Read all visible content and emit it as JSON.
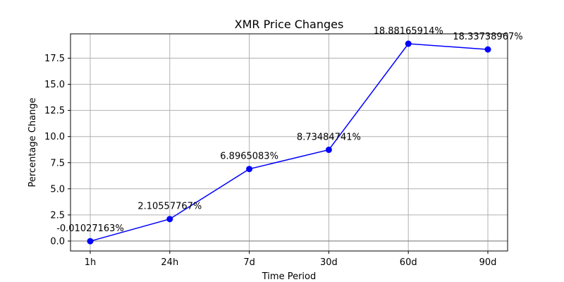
{
  "chart_data": {
    "type": "line",
    "title": "XMR Price Changes",
    "xlabel": "Time Period",
    "ylabel": "Percentage Change",
    "categories": [
      "1h",
      "24h",
      "7d",
      "30d",
      "60d",
      "90d"
    ],
    "values": [
      -0.01027163,
      2.10557767,
      6.8965083,
      8.73484741,
      18.88165914,
      18.33738967
    ],
    "data_labels": [
      "-0.01027163%",
      "2.10557767%",
      "6.8965083%",
      "8.73484741%",
      "18.88165914%",
      "18.33738967%"
    ],
    "yticks": [
      0.0,
      2.5,
      5.0,
      7.5,
      10.0,
      12.5,
      15.0,
      17.5
    ],
    "ytick_labels": [
      "0.0",
      "2.5",
      "5.0",
      "7.5",
      "10.0",
      "12.5",
      "15.0",
      "17.5"
    ],
    "ylim": [
      -0.95,
      19.83
    ],
    "grid": true,
    "baseline": 0,
    "line_color": "#0000ff",
    "baseline_color": "#808080",
    "grid_color": "#b0b0b0"
  }
}
